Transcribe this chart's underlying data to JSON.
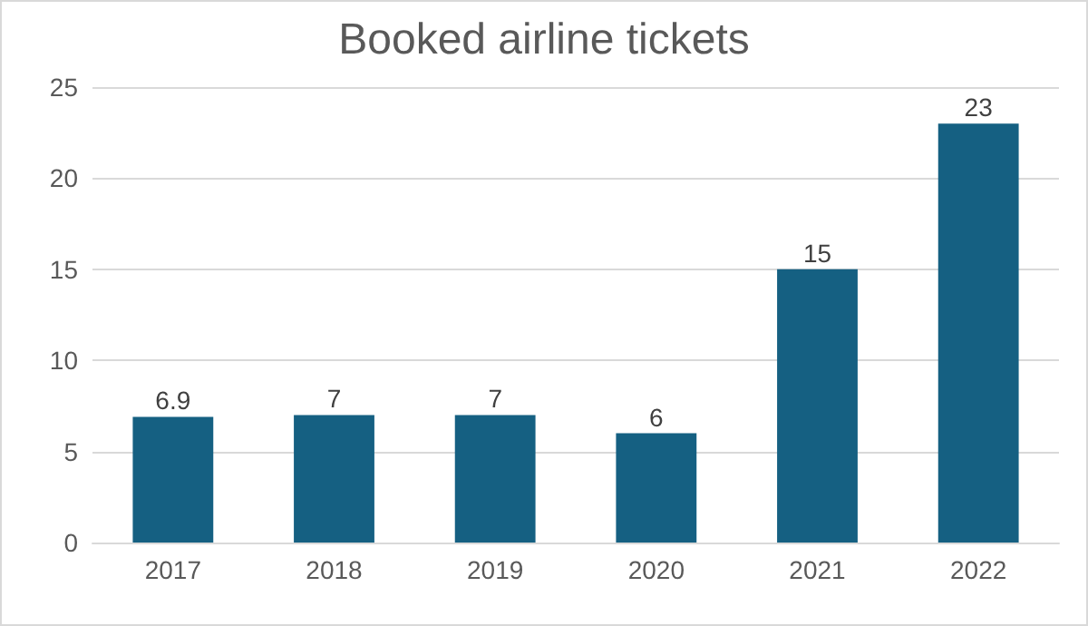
{
  "chart_data": {
    "type": "bar",
    "title": "Booked airline tickets",
    "categories": [
      "2017",
      "2018",
      "2019",
      "2020",
      "2021",
      "2022"
    ],
    "values": [
      6.9,
      7,
      7,
      6,
      15,
      23
    ],
    "color": "#156082",
    "ylim": [
      0,
      25
    ],
    "yticks": [
      0,
      5,
      10,
      15,
      20,
      25
    ],
    "grid": "y",
    "data_labels": true
  }
}
